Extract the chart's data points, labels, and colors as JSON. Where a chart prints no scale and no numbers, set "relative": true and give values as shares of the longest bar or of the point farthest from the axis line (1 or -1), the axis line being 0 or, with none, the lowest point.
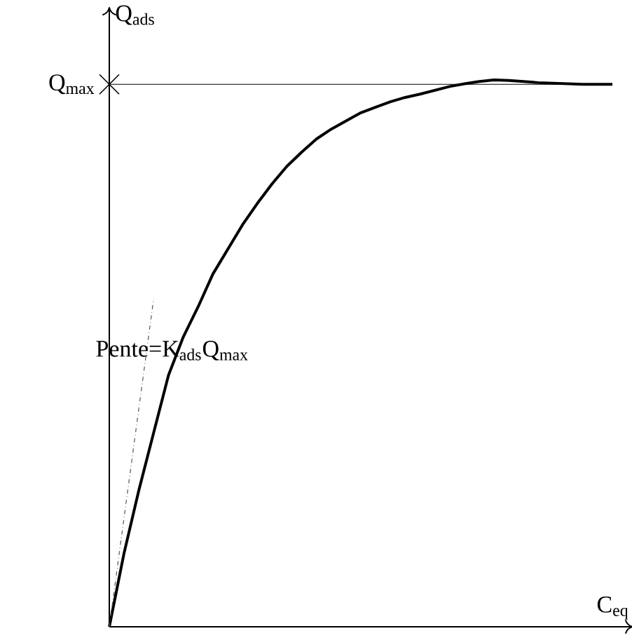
{
  "chart_data": {
    "type": "line",
    "relative": true,
    "xlabel": "C$_{eq}$",
    "ylabel": "Q$_{ads}$",
    "annotations": [
      "Pente=K$_{ads}$Q$_{max}$"
    ],
    "ref_lines": [
      {
        "axis": "y",
        "value": 0.992,
        "label": "Q$_{max}$",
        "color": "#000000"
      }
    ],
    "categories": [
      null,
      null,
      null,
      null,
      null,
      null,
      null,
      null,
      null,
      null,
      null,
      null,
      null,
      null,
      null,
      null,
      null,
      null,
      null,
      null,
      null,
      null,
      null,
      null,
      null,
      null,
      null,
      null,
      null,
      null,
      null,
      null,
      null,
      null,
      null
    ],
    "series": [
      {
        "color": "#000000",
        "values": [
          0,
          0.135,
          0.25,
          0.355,
          0.46,
          0.53,
          0.585,
          0.645,
          0.69,
          0.735,
          0.774,
          0.81,
          0.842,
          0.868,
          0.892,
          0.91,
          0.925,
          0.94,
          0.95,
          0.96,
          0.968,
          0.974,
          0.981,
          0.988,
          0.993,
          0.997,
          1,
          0.999,
          0.997,
          0.995,
          0.994,
          0.993,
          0.992,
          0.992,
          0.992
        ]
      },
      {
        "color": "#555555",
        "line_style": "dashed",
        "values": [
          0,
          0.2,
          0.4,
          0.6,
          null,
          null,
          null,
          null,
          null,
          null,
          null,
          null,
          null,
          null,
          null,
          null,
          null,
          null,
          null,
          null,
          null,
          null,
          null,
          null,
          null,
          null,
          null,
          null,
          null,
          null,
          null,
          null,
          null,
          null,
          null
        ]
      }
    ],
    "marker": "none"
  }
}
